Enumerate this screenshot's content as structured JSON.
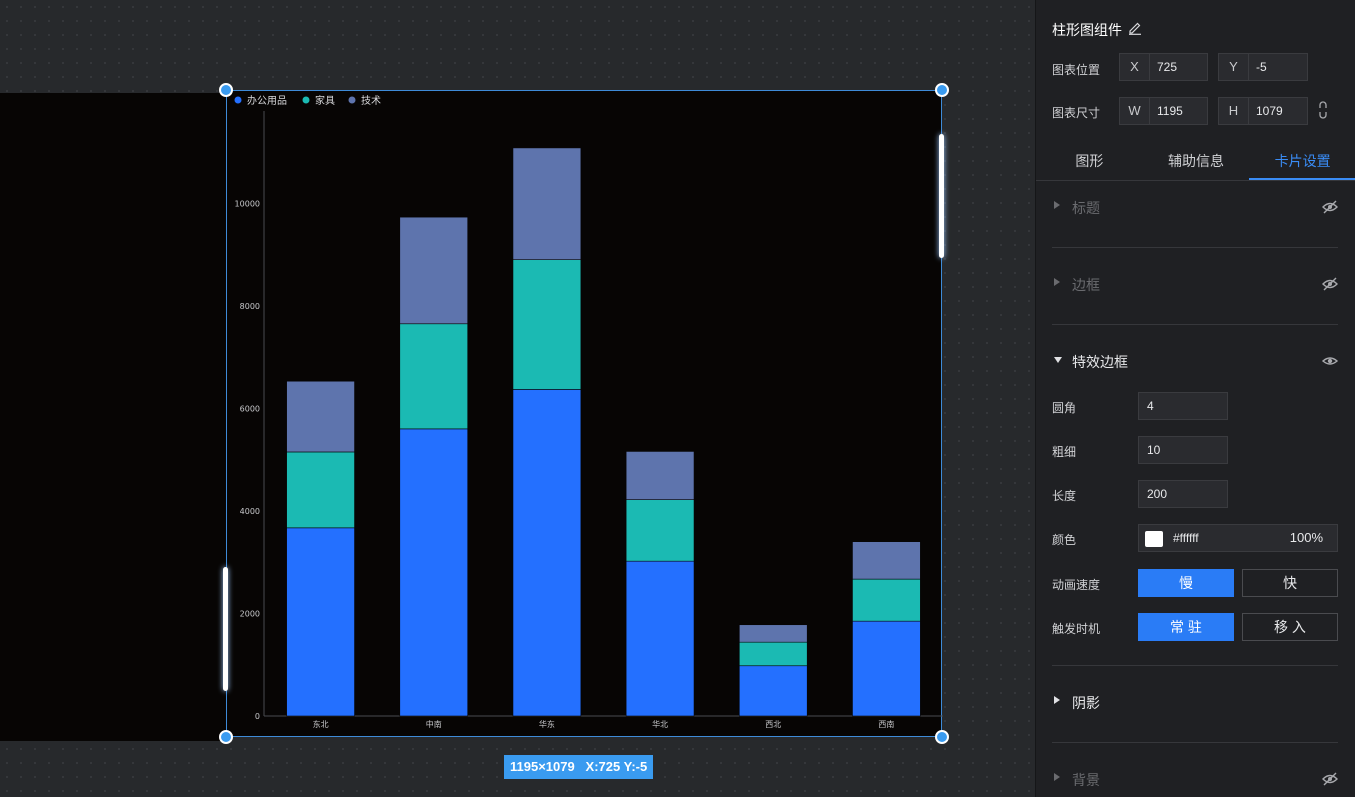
{
  "canvas": {
    "size_badge": "1195×1079   X:725 Y:-5"
  },
  "chart_data": {
    "type": "bar",
    "stacked": true,
    "categories": [
      "东北",
      "中南",
      "华东",
      "华北",
      "西北",
      "西南"
    ],
    "series": [
      {
        "name": "办公用品",
        "color": "#2470ff",
        "values": [
          3670,
          5600,
          6370,
          3020,
          980,
          1850
        ]
      },
      {
        "name": "家具",
        "color": "#1bbab3",
        "values": [
          1480,
          2050,
          2530,
          1200,
          460,
          820
        ]
      },
      {
        "name": "技术",
        "color": "#5e74ad",
        "values": [
          1380,
          2080,
          2180,
          940,
          340,
          730
        ]
      }
    ],
    "yticks": [
      "0",
      "2000",
      "4000",
      "6000",
      "8000",
      "10000"
    ],
    "ylim": [
      0,
      11800
    ],
    "legend": "top-left",
    "grid": false
  },
  "panel": {
    "title": "柱形图组件",
    "position_label": "图表位置",
    "size_label": "图表尺寸",
    "x_key": "X",
    "x_value": "725",
    "y_key": "Y",
    "y_value": "-5",
    "w_key": "W",
    "w_value": "1195",
    "h_key": "H",
    "h_value": "1079",
    "tabs": [
      "图形",
      "辅助信息",
      "卡片设置"
    ],
    "sections": {
      "title": "标题",
      "border": "边框",
      "effect_border": "特效边框",
      "shadow": "阴影",
      "background": "背景"
    },
    "effect": {
      "radius_label": "圆角",
      "radius_value": "4",
      "thickness_label": "粗细",
      "thickness_value": "10",
      "length_label": "长度",
      "length_value": "200",
      "color_label": "颜色",
      "color_hex": "#ffffff",
      "color_opacity": "100%",
      "speed_label": "动画速度",
      "speed_slow": "慢",
      "speed_fast": "快",
      "trigger_label": "触发时机",
      "trigger_always": "常 驻",
      "trigger_hover": "移 入"
    }
  }
}
